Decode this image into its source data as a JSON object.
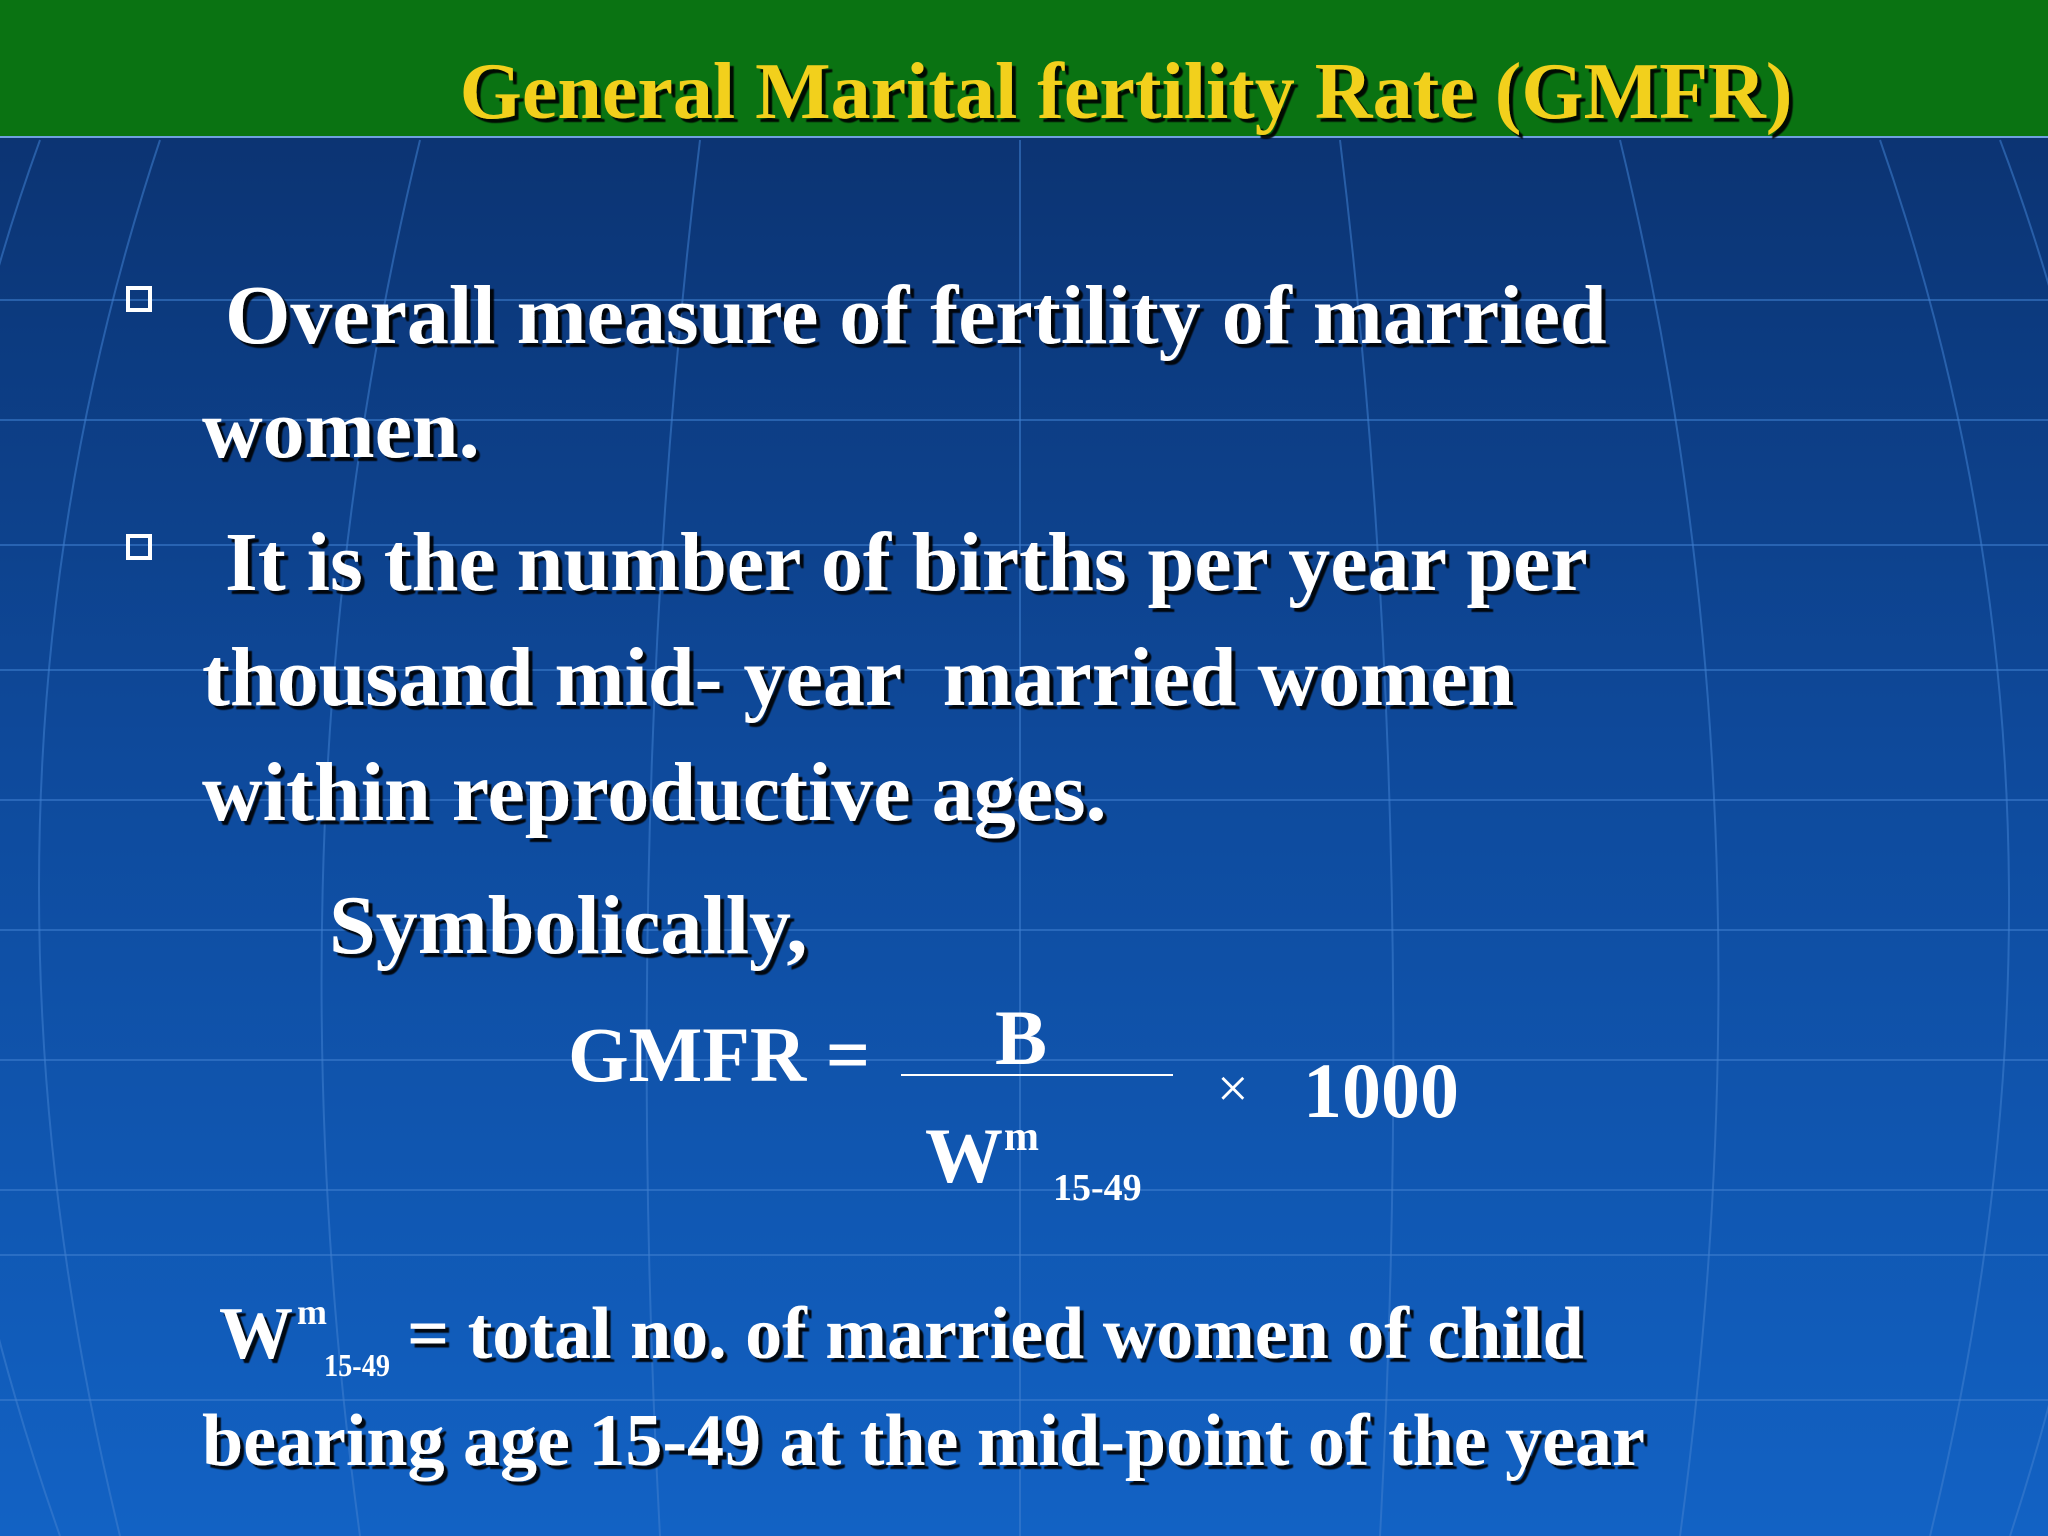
{
  "header": {
    "title": "General Marital fertility Rate (GMFR)"
  },
  "bullets": [
    {
      "lines": [
        "Overall measure of fertility of married",
        "women."
      ]
    },
    {
      "lines": [
        "It is the number of births per year per",
        "thousand mid- year  married women",
        "within reproductive ages."
      ]
    }
  ],
  "symbolically": "Symbolically,",
  "formula": {
    "lhs": "GMFR =",
    "numerator": "B",
    "denominator": "W",
    "denominator_sup": "m",
    "denominator_sub": "15-49",
    "times": "×",
    "factor": "1000"
  },
  "definition": {
    "symbol": "W",
    "symbol_sup": "m",
    "symbol_sub": "15-49",
    "lines": [
      "= total no. of married women of child",
      "bearing age 15-49 at the mid-point of the year"
    ]
  }
}
